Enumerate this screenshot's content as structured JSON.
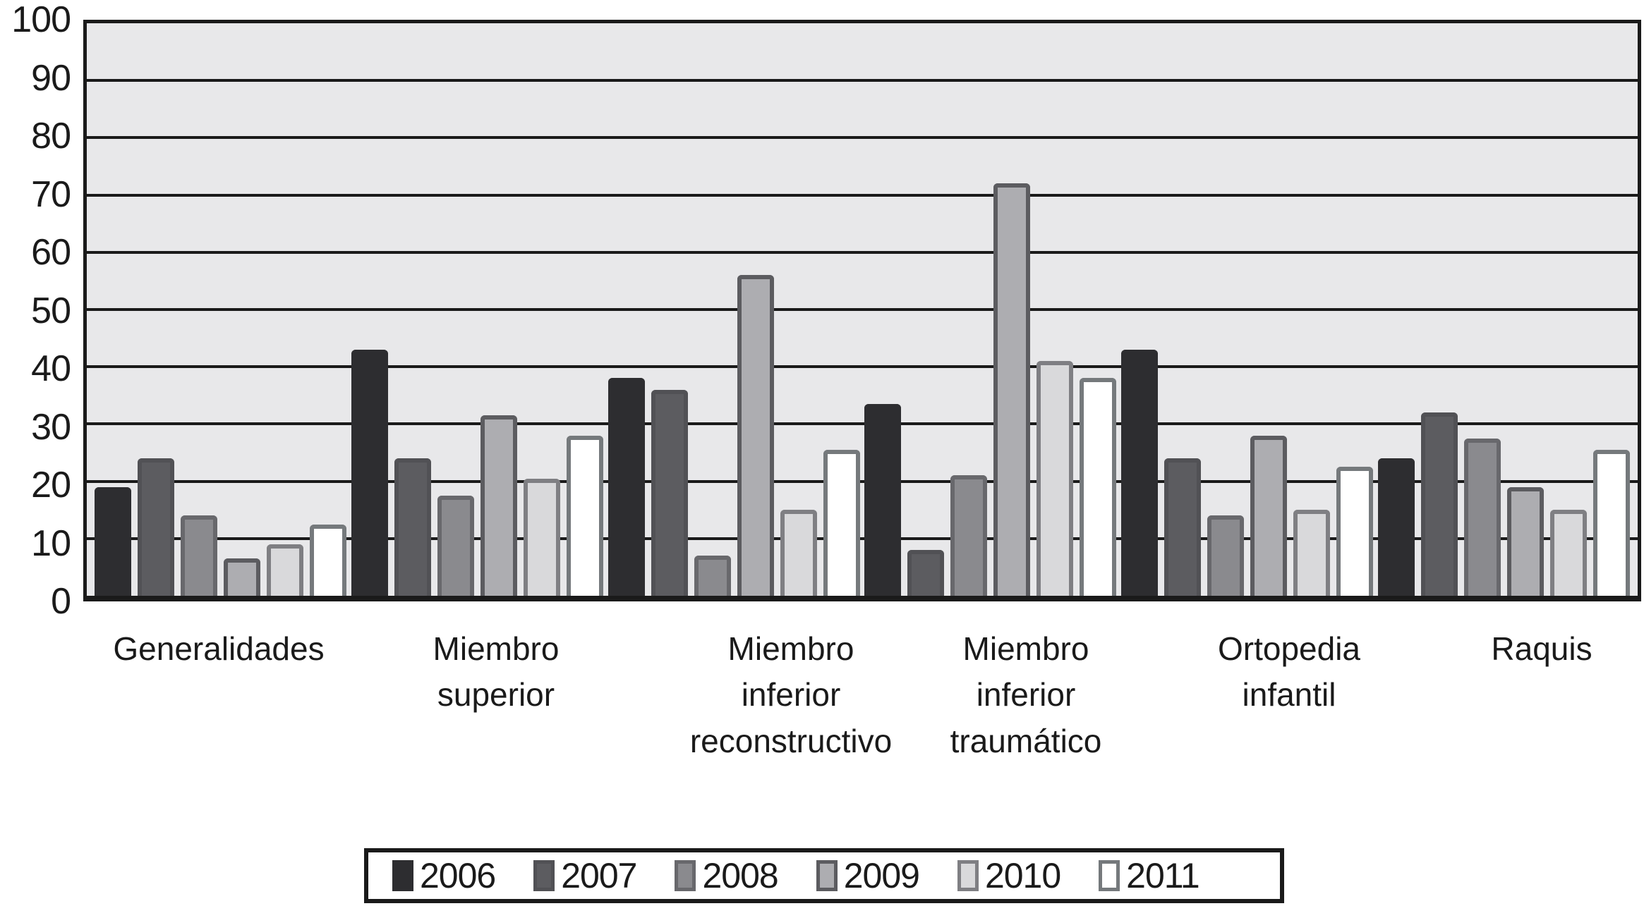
{
  "chart_data": {
    "type": "bar",
    "title": "",
    "xlabel": "",
    "ylabel": "",
    "ylim": [
      0,
      100
    ],
    "grid": true,
    "legend_position": "bottom",
    "yticks": [
      "100",
      "90",
      "80",
      "70",
      "60",
      "50",
      "40",
      "30",
      "20",
      "10",
      "0"
    ],
    "categories": [
      "Generalidades",
      "Miembro\nsuperior",
      "Miembro\ninferior\nreconstructivo",
      "Miembro\ninferior\ntraumático",
      "Ortopedia\ninfantil",
      "Raquis"
    ],
    "series": [
      {
        "name": "2006",
        "values": [
          19,
          43,
          38,
          33.5,
          43,
          24
        ],
        "fill": "#2d2d30",
        "border": "#2d2d30"
      },
      {
        "name": "2007",
        "values": [
          24,
          24,
          36,
          8,
          24,
          32
        ],
        "fill": "#5c5c60",
        "border": "#515155"
      },
      {
        "name": "2008",
        "values": [
          14,
          17.5,
          7,
          21,
          14,
          27.5
        ],
        "fill": "#8a8a8e",
        "border": "#68686c"
      },
      {
        "name": "2009",
        "values": [
          6.5,
          31.5,
          56,
          72,
          28,
          19
        ],
        "fill": "#adadb1",
        "border": "#5c5c60"
      },
      {
        "name": "2010",
        "values": [
          9,
          20.5,
          15,
          41,
          15,
          15
        ],
        "fill": "#d9d9db",
        "border": "#7f7f83"
      },
      {
        "name": "2011",
        "values": [
          12.5,
          28,
          25.5,
          38,
          22.5,
          25.5
        ],
        "fill": "#ffffff",
        "border": "#75797c"
      }
    ]
  },
  "colors": {
    "plot_background": "#e8e8ea",
    "grid": "#1a1a1a",
    "axis": "#1a1a1a",
    "text": "#1a1a1a",
    "legend_background": "#ffffff"
  }
}
